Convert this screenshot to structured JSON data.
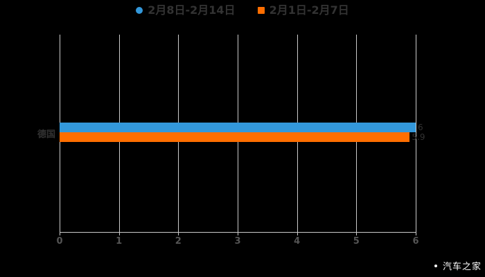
{
  "legend": {
    "items": [
      {
        "label": "2月8日-2月14日",
        "color": "#3398db",
        "shape": "circle"
      },
      {
        "label": "2月1日-2月7日",
        "color": "#ff6e00",
        "shape": "square"
      }
    ]
  },
  "chart_data": {
    "type": "bar",
    "orientation": "horizontal",
    "title": "",
    "xlabel": "",
    "ylabel": "",
    "categories": [
      "德国"
    ],
    "series": [
      {
        "name": "2月8日-2月14日",
        "color": "#3398db",
        "values": [
          6
        ]
      },
      {
        "name": "2月1日-2月7日",
        "color": "#ff6e00",
        "values": [
          5.9
        ]
      }
    ],
    "x_ticks": [
      "0",
      "1",
      "2",
      "3",
      "4",
      "5",
      "6"
    ],
    "xlim": [
      0,
      6
    ],
    "grid": true,
    "legend_position": "top",
    "value_label_color": "#333333"
  },
  "watermark": {
    "text": "汽车之家"
  },
  "colors": {
    "background": "#000000",
    "grid_line": "#cccccc",
    "axis_line": "#cccccc",
    "tick_label": "#555555",
    "category_label": "#333333",
    "legend_text": "#333333"
  }
}
